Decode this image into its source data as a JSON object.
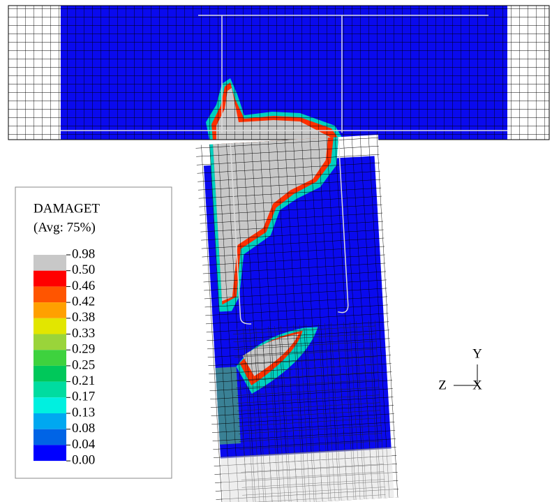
{
  "legend": {
    "title": "DAMAGET",
    "subtitle": "(Avg: 75%)",
    "levels": [
      "0.98",
      "0.50",
      "0.46",
      "0.42",
      "0.38",
      "0.33",
      "0.29",
      "0.25",
      "0.21",
      "0.17",
      "0.13",
      "0.08",
      "0.04",
      "0.00"
    ],
    "colors": [
      "#c8c8c8",
      "#ff0000",
      "#ff5500",
      "#ffa000",
      "#e2e600",
      "#9ad43a",
      "#3ed23e",
      "#00c85a",
      "#00dca0",
      "#00f0e0",
      "#00a8f0",
      "#0064e6",
      "#0000ff"
    ]
  },
  "triad": {
    "y": "Y",
    "z": "Z",
    "x": "X"
  }
}
